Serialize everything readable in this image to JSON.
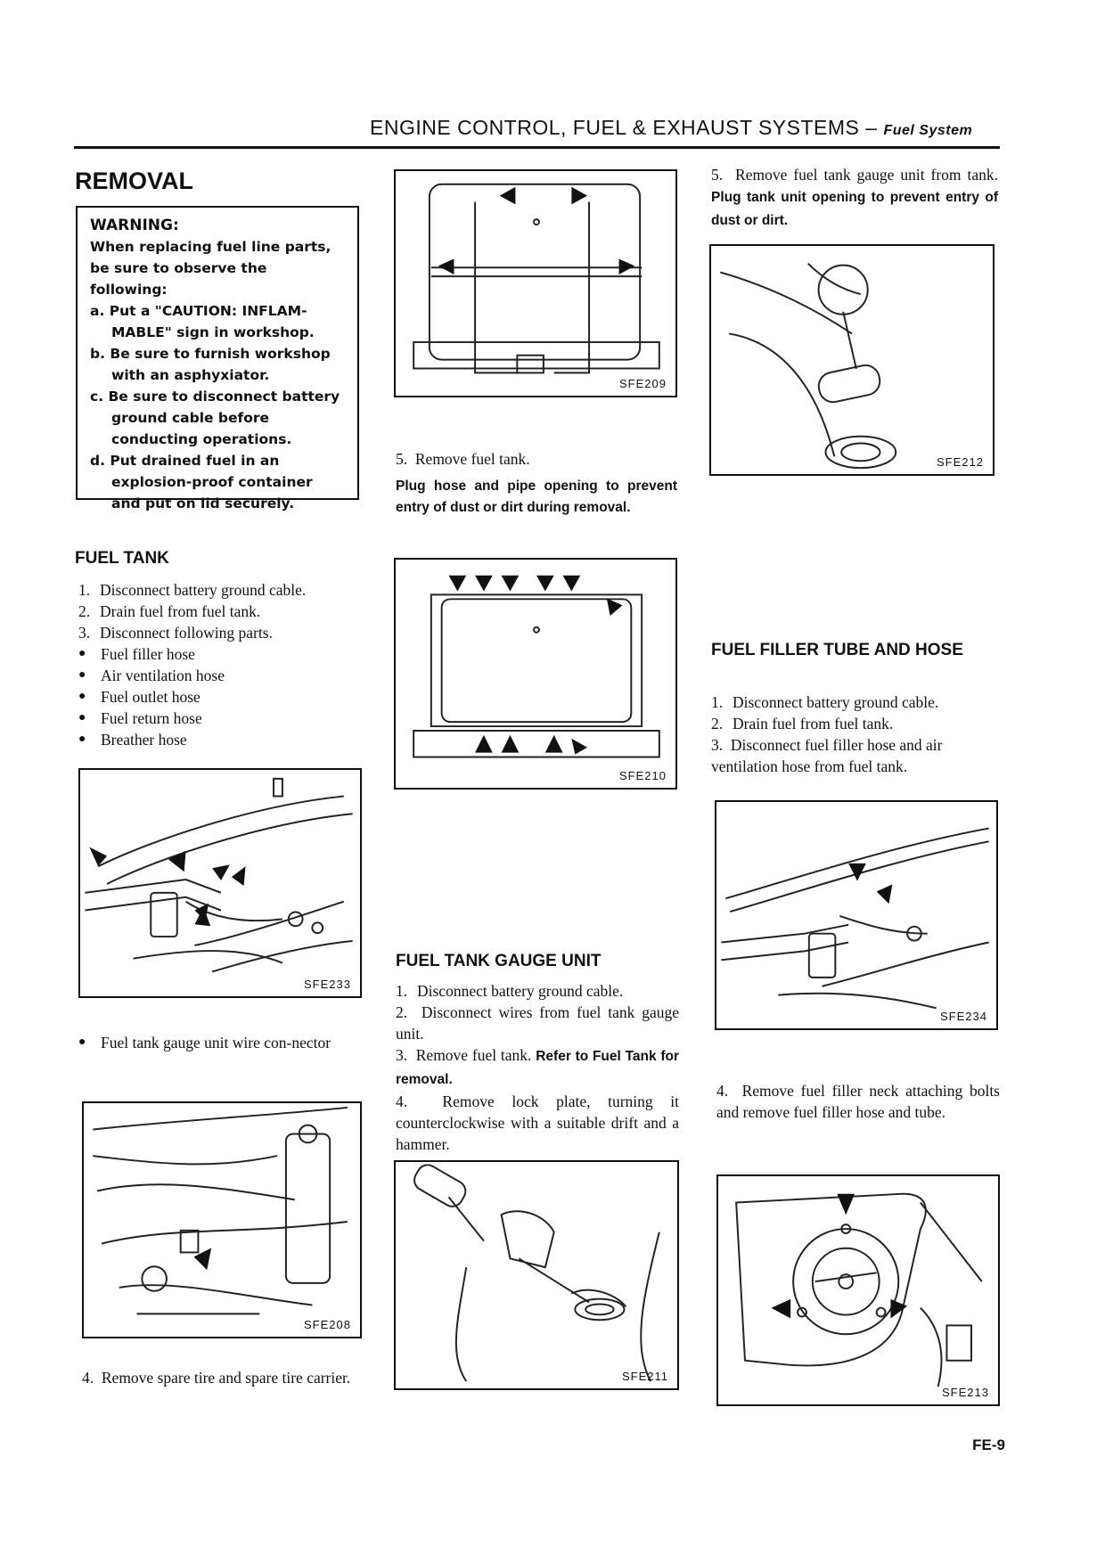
{
  "header": {
    "title": "ENGINE CONTROL, FUEL & EXHAUST SYSTEMS",
    "separator": " – ",
    "subtitle": "Fuel System"
  },
  "removal": {
    "heading": "REMOVAL",
    "warning": {
      "title": "WARNING:",
      "intro": "When replacing fuel line parts, be sure to observe the following:",
      "items": [
        "a. Put a \"CAUTION: INFLAM-MABLE\" sign in workshop.",
        "b. Be sure to furnish workshop with an asphyxiator.",
        "c. Be sure to disconnect battery ground cable before conducting operations.",
        "d. Put drained fuel in an explosion-proof container and put on lid securely."
      ]
    }
  },
  "fuel_tank": {
    "heading": "FUEL TANK",
    "steps": [
      {
        "num": "1.",
        "text": "Disconnect battery ground cable."
      },
      {
        "num": "2.",
        "text": "Drain fuel from fuel tank."
      },
      {
        "num": "3.",
        "text": "Disconnect following parts."
      }
    ],
    "bullets": [
      "Fuel filler hose",
      "Air ventilation hose",
      "Fuel outlet hose",
      "Fuel return hose",
      "Breather hose"
    ],
    "fig1_id": "SFE233",
    "bullet2": "Fuel tank gauge unit wire con-nector",
    "fig2_id": "SFE208",
    "step4_num": "4.",
    "step4_text": "Remove spare tire and spare tire carrier."
  },
  "middle": {
    "fig_top_id": "SFE209",
    "step5_num": "5.",
    "step5_text": "Remove fuel tank.",
    "step5_note": "Plug hose and pipe opening to prevent entry of dust or dirt during removal.",
    "fig_mid_id": "SFE210"
  },
  "gauge_unit": {
    "heading": "FUEL TANK GAUGE UNIT",
    "step1_num": "1.",
    "step1_text": "Disconnect battery ground cable.",
    "step2_num": "2.",
    "step2_text": "Disconnect wires from fuel tank gauge unit.",
    "step3_num": "3.",
    "step3_text": "Remove fuel tank.",
    "step3_note": "Refer to Fuel Tank for removal.",
    "step4_num": "4.",
    "step4_text": "Remove lock plate, turning it counterclockwise with a suitable drift and a hammer.",
    "fig_id": "SFE211"
  },
  "right": {
    "step5_num": "5.",
    "step5_text": "Remove fuel tank gauge unit from tank.",
    "step5_note": "Plug tank unit opening to prevent entry of dust or dirt.",
    "fig_top_id": "SFE212",
    "filler_heading": "FUEL FILLER TUBE AND HOSE",
    "steps": [
      {
        "num": "1.",
        "text": "Disconnect battery ground cable."
      },
      {
        "num": "2.",
        "text": "Drain fuel from fuel tank."
      },
      {
        "num": "3.",
        "text": "Disconnect fuel filler hose and air ventilation hose from fuel tank."
      }
    ],
    "fig_mid_id": "SFE234",
    "step4_num": "4.",
    "step4_text": "Remove fuel filler neck attaching bolts and remove fuel filler hose and tube.",
    "fig_bot_id": "SFE213"
  },
  "page_number": "FE-9"
}
